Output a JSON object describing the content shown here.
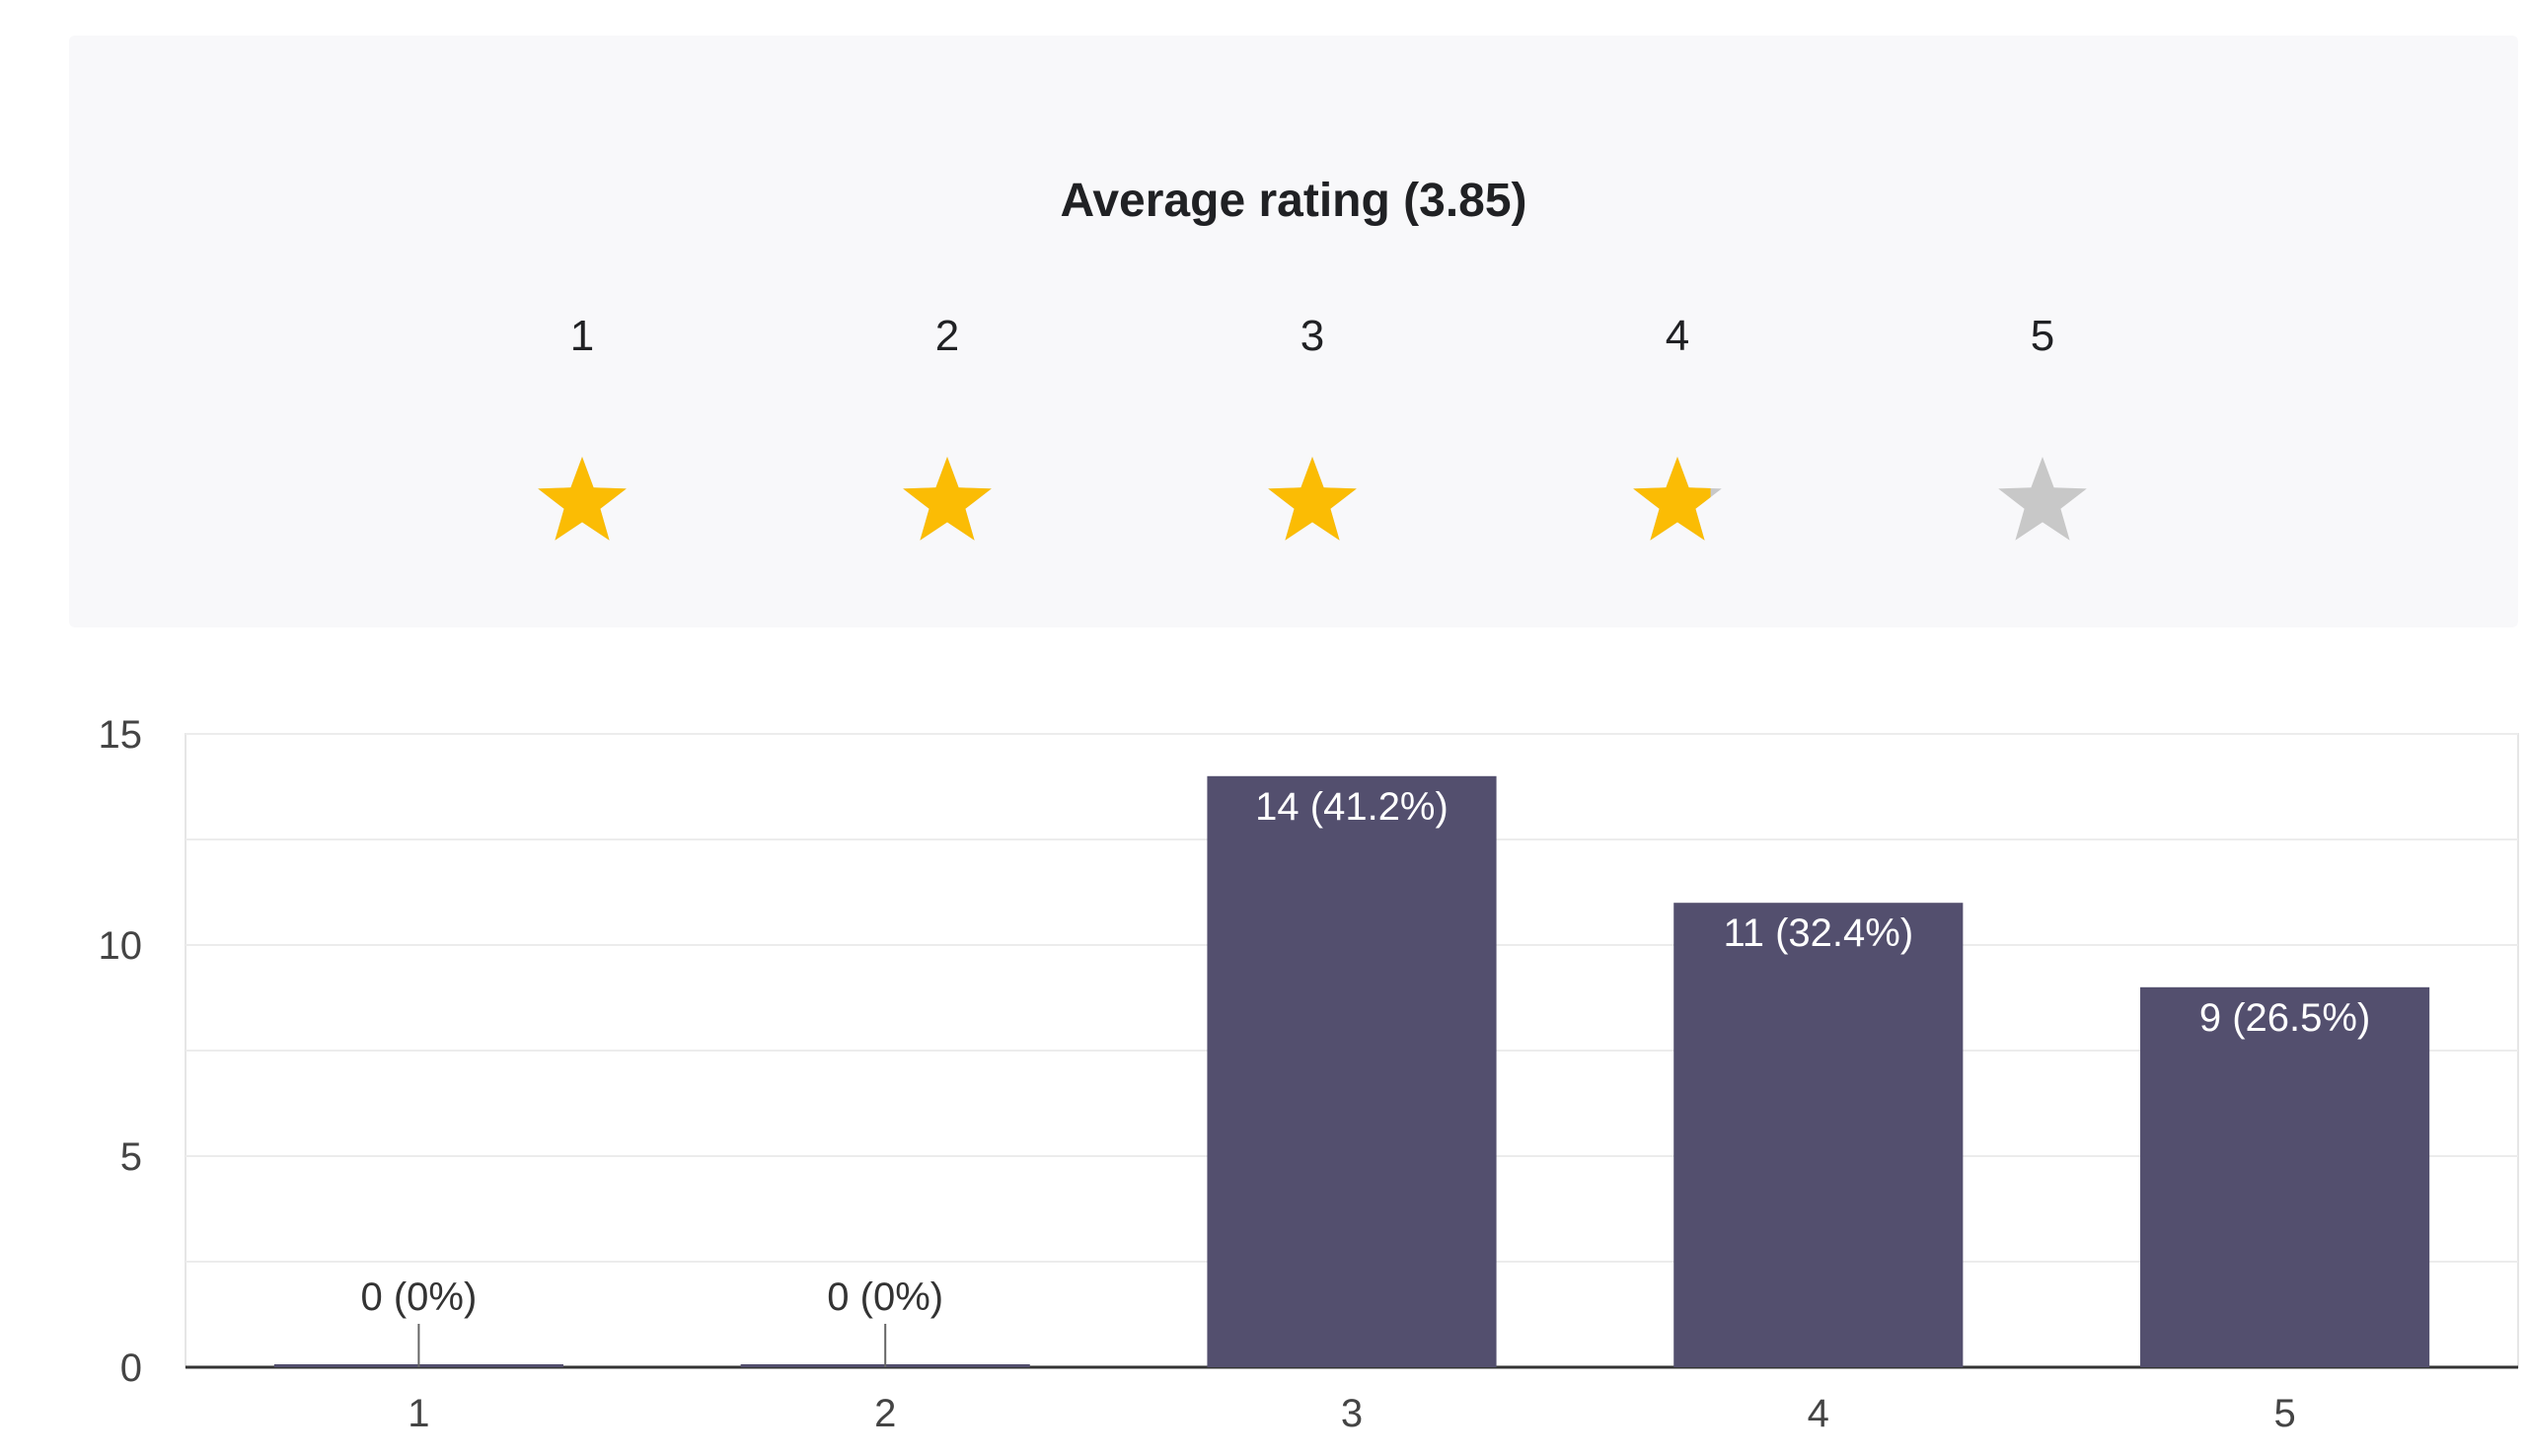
{
  "rating_summary": {
    "title": "Average rating (3.85)",
    "average": 3.85,
    "max_stars": 5,
    "star_labels": [
      "1",
      "2",
      "3",
      "4",
      "5"
    ],
    "star_fill": [
      1,
      1,
      1,
      0.85,
      0
    ],
    "colors": {
      "filled": "#fbbc04",
      "empty": "#c8c8c8"
    }
  },
  "chart_data": {
    "type": "bar",
    "categories": [
      "1",
      "2",
      "3",
      "4",
      "5"
    ],
    "values": [
      0,
      0,
      14,
      11,
      9
    ],
    "labels": [
      "0 (0%)",
      "0 (0%)",
      "14 (41.2%)",
      "11 (32.4%)",
      "9 (26.5%)"
    ],
    "ylim": [
      0,
      15
    ],
    "yticks": [
      "0",
      "5",
      "10",
      "15"
    ],
    "grid": true,
    "bar_color": "#534f6e",
    "title": "",
    "xlabel": "",
    "ylabel": ""
  }
}
